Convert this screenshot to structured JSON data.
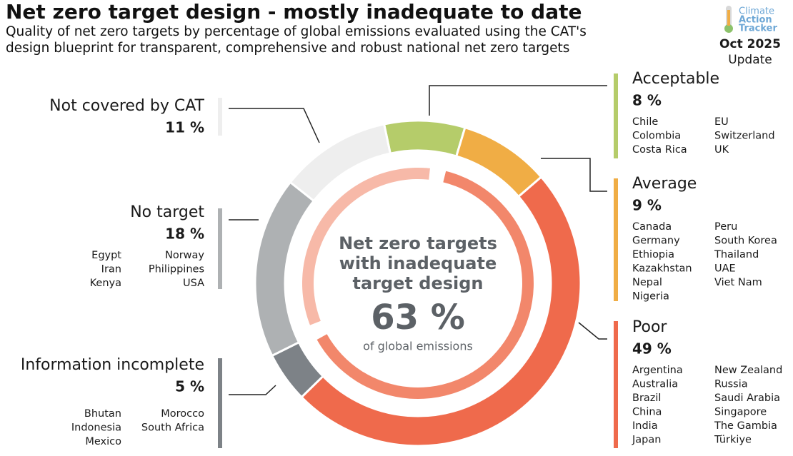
{
  "chart_data": {
    "type": "donut",
    "title": "Net zero target design - mostly inadequate to date",
    "subtitle": "Quality of net zero targets by percentage of global emissions evaluated using the CAT's design blueprint for transparent, comprehensive and robust national net zero targets",
    "categories": [
      "Acceptable",
      "Average",
      "Poor",
      "Information incomplete",
      "No target",
      "Not covered by CAT"
    ],
    "values": [
      8,
      9,
      49,
      5,
      18,
      11
    ],
    "value_labels": [
      "8 %",
      "9 %",
      "49 %",
      "5 %",
      "18 %",
      "11 %"
    ],
    "colors": [
      "#b5cc6a",
      "#f0ad45",
      "#ef6a4c",
      "#7d8287",
      "#aeb1b3",
      "#eeeeee"
    ],
    "countries": [
      [
        "Chile",
        "Colombia",
        "Costa Rica",
        "EU",
        "Switzerland",
        "UK"
      ],
      [
        "Canada",
        "Germany",
        "Ethiopia",
        "Kazakhstan",
        "Nepal",
        "Nigeria",
        "Peru",
        "South Korea",
        "Thailand",
        "UAE",
        "Viet Nam"
      ],
      [
        "Argentina",
        "Australia",
        "Brazil",
        "China",
        "India",
        "Japan",
        "New Zealand",
        "Russia",
        "Saudi Arabia",
        "Singapore",
        "The Gambia",
        "Türkiye"
      ],
      [
        "Bhutan",
        "Indonesia",
        "Mexico",
        "Morocco",
        "South Africa"
      ],
      [
        "Egypt",
        "Iran",
        "Kenya",
        "Norway",
        "Philippines",
        "USA"
      ],
      []
    ],
    "center": {
      "lines": [
        "Net zero targets",
        "with inadequate",
        "target design"
      ],
      "value": 63,
      "value_label": "63 %",
      "caption": "of global emissions",
      "color": "#f2876b",
      "track_color": "#f7b9a8"
    }
  },
  "logo": {
    "name_lines": [
      "Climate",
      "Action",
      "Tracker"
    ],
    "date": "Oct 2025",
    "edition": "Update"
  }
}
